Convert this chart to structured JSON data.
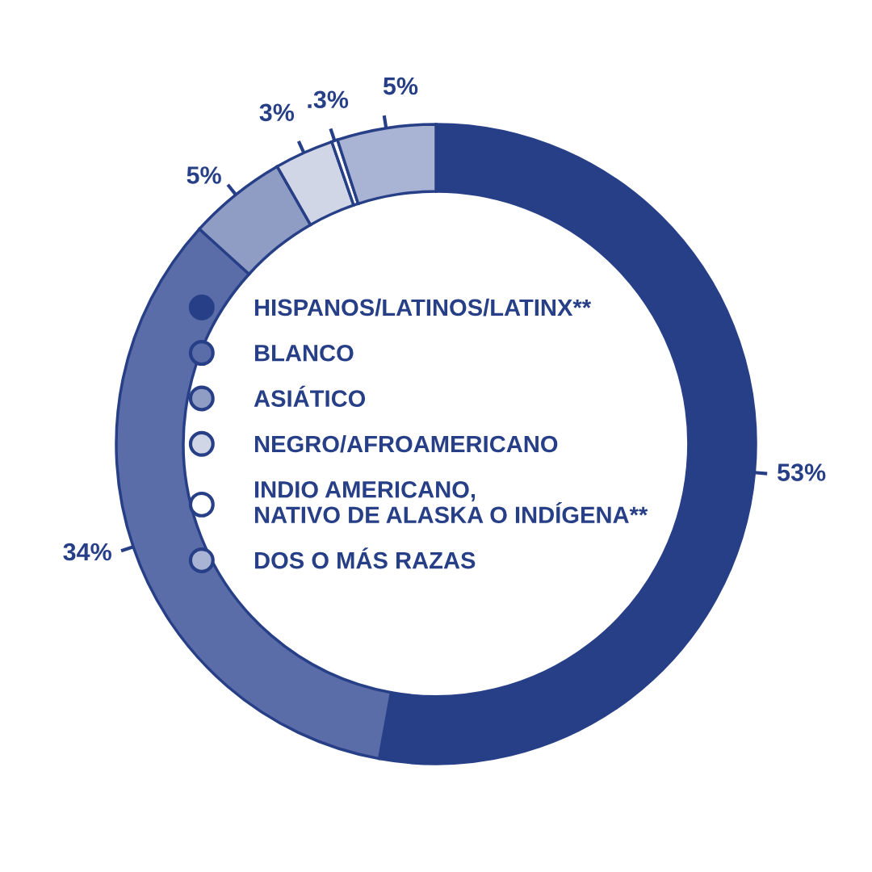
{
  "chart_data": {
    "type": "donut",
    "categories": [
      "HISPANOS/LATINOS/LATINX**",
      "BLANCO",
      "ASIÁTICO",
      "NEGRO/AFROAMERICANO",
      "INDIO AMERICANO,\nNATIVO DE ALASKA O INDÍGENA**",
      "DOS O MÁS RAZAS"
    ],
    "values": [
      53,
      34,
      5,
      3,
      0.3,
      5
    ],
    "value_labels": [
      "53%",
      "34%",
      "5%",
      "3%",
      ".3%",
      "5%"
    ],
    "colors": [
      "#273f87",
      "#5b6da8",
      "#8f9cc4",
      "#d0d6e5",
      "#ffffff",
      "#a9b3d3"
    ],
    "legend": "center"
  }
}
